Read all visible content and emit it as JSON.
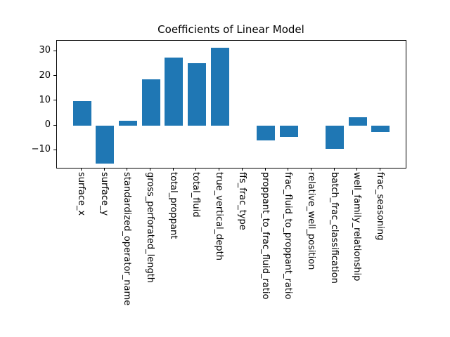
{
  "chart_data": {
    "type": "bar",
    "title": "Coefficients of Linear Model",
    "categories": [
      "surface_x",
      "surface_y",
      "standardized_operator_name",
      "gross_perforated_length",
      "total_proppant",
      "total_fluid",
      "true_vertical_depth",
      "ffs_frac_type",
      "proppant_to_frac_fluid_ratio",
      "frac_fluid_to_proppant_ratio",
      "relative_well_position",
      "batch_frac_classification",
      "well_family_relationship",
      "frac_seasoning"
    ],
    "values": [
      9.9,
      -15.4,
      2.1,
      18.7,
      27.4,
      25.2,
      31.6,
      0,
      -5.8,
      -4.6,
      0,
      -9.4,
      3.4,
      -2.6
    ],
    "xlabel": "",
    "ylabel": "",
    "yticks": [
      30,
      20,
      10,
      0,
      -10
    ],
    "ylim": [
      -17.0,
      34.35
    ],
    "bar_color": "#1f77b4",
    "axis_color": "#000000",
    "background_color": "#ffffff",
    "grid": false,
    "legend": false,
    "bar_width_fraction": 0.8,
    "x_margin_fraction": 0.05,
    "tick_label_rotation_deg": 90
  }
}
